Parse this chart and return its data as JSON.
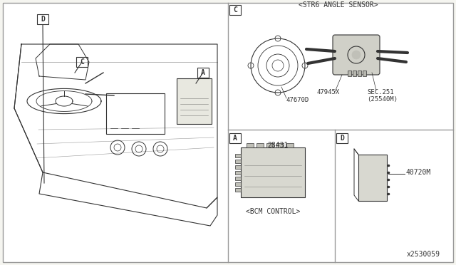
{
  "bg_color": "#f5f5f0",
  "border_color": "#999999",
  "line_color": "#333333",
  "title_code": "x2530059",
  "label_A": "A",
  "label_C": "C",
  "label_D": "D",
  "part_bcm": "28431",
  "part_bcm_label": "<BCM CONTROL>",
  "part_d_number": "40720M",
  "part_47670D": "47670D",
  "part_47945X": "47945X",
  "part_sec": "SEC.251",
  "part_sec2": "(25540M)",
  "str_label": "<STR6 ANGLE SENSOR>"
}
